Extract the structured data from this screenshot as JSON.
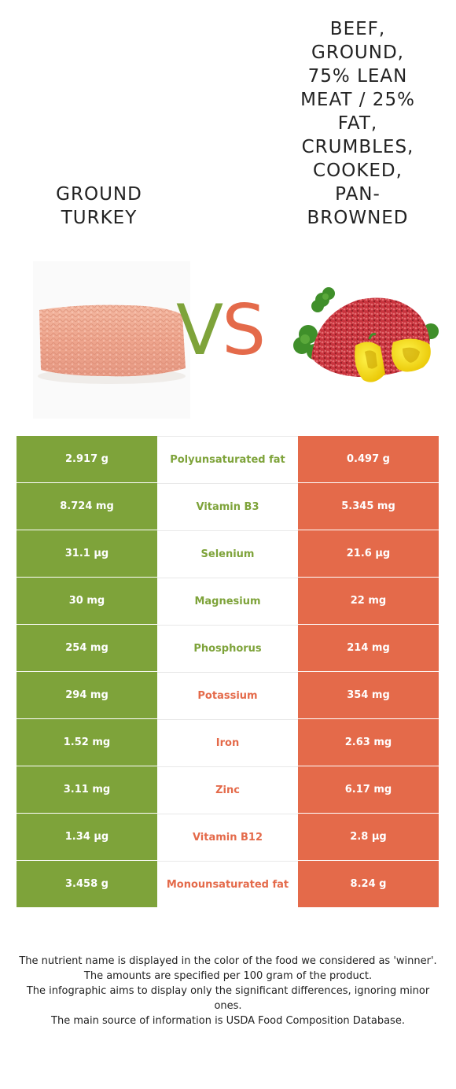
{
  "foods": {
    "left": {
      "title": "Ground turkey",
      "color": "#7ea33a",
      "image_icon": "ground-turkey-image"
    },
    "right": {
      "title_lines": [
        "Beef,",
        "ground,",
        "75% lean",
        "meat / 25%",
        "fat,",
        "crumbles,",
        "cooked,",
        "pan-",
        "browned"
      ],
      "color": "#e46a4a",
      "image_icon": "ground-beef-image"
    }
  },
  "vs": {
    "v": "V",
    "s": "S"
  },
  "rows": [
    {
      "left": "2.917 g",
      "nutrient": "Polyunsaturated fat",
      "right": "0.497 g",
      "winner": "left"
    },
    {
      "left": "8.724 mg",
      "nutrient": "Vitamin B3",
      "right": "5.345 mg",
      "winner": "left"
    },
    {
      "left": "31.1 µg",
      "nutrient": "Selenium",
      "right": "21.6 µg",
      "winner": "left"
    },
    {
      "left": "30 mg",
      "nutrient": "Magnesium",
      "right": "22 mg",
      "winner": "left"
    },
    {
      "left": "254 mg",
      "nutrient": "Phosphorus",
      "right": "214 mg",
      "winner": "left"
    },
    {
      "left": "294 mg",
      "nutrient": "Potassium",
      "right": "354 mg",
      "winner": "right"
    },
    {
      "left": "1.52 mg",
      "nutrient": "Iron",
      "right": "2.63 mg",
      "winner": "right"
    },
    {
      "left": "3.11 mg",
      "nutrient": "Zinc",
      "right": "6.17 mg",
      "winner": "right"
    },
    {
      "left": "1.34 µg",
      "nutrient": "Vitamin B12",
      "right": "2.8 µg",
      "winner": "right"
    },
    {
      "left": "3.458 g",
      "nutrient": "Monounsaturated fat",
      "right": "8.24 g",
      "winner": "right"
    }
  ],
  "footer": [
    "The nutrient name is displayed in the color of the food we considered as 'winner'.",
    "The amounts are specified per 100 gram of the product.",
    "The infographic aims to display only the significant differences, ignoring minor ones.",
    "The main source of information is USDA Food Composition Database."
  ]
}
